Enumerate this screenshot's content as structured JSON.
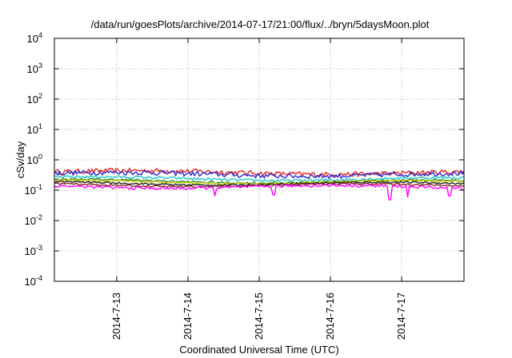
{
  "chart_data": {
    "type": "line",
    "title": "/data/run/goesPlots/archive/2014-07-17/21:00/flux/../bryn/5daysMoon.plot",
    "xlabel": "Coordinated Universal Time (UTC)",
    "ylabel": "cSv/day",
    "y_scale": "log",
    "ylim": [
      0.0001,
      10000
    ],
    "xlim": [
      "2014-07-12 03:00",
      "2014-07-17 21:00"
    ],
    "x_ticks": [
      "2014-7-13",
      "2014-7-14",
      "2014-7-15",
      "2014-7-16",
      "2014-7-17"
    ],
    "y_ticks": [
      {
        "base": "10",
        "exp": "4"
      },
      {
        "base": "10",
        "exp": "3"
      },
      {
        "base": "10",
        "exp": "2"
      },
      {
        "base": "10",
        "exp": "1"
      },
      {
        "base": "10",
        "exp": "0"
      },
      {
        "base": "10",
        "exp": "-1"
      },
      {
        "base": "10",
        "exp": "-2"
      },
      {
        "base": "10",
        "exp": "-3"
      },
      {
        "base": "10",
        "exp": "-4"
      }
    ],
    "grid": true,
    "legend": "none",
    "series": [
      {
        "color": "#e8231c",
        "baseline": 0.38,
        "spread": 0.18,
        "dips": []
      },
      {
        "color": "#2b2bd0",
        "baseline": 0.33,
        "spread": 0.18,
        "dips": []
      },
      {
        "color": "#1ec8c8",
        "baseline": 0.24,
        "spread": 0.1,
        "dips": []
      },
      {
        "color": "#2a8a2a",
        "baseline": 0.2,
        "spread": 0.07,
        "dips": []
      },
      {
        "color": "#c8c800",
        "baseline": 0.19,
        "spread": 0.06,
        "dips": []
      },
      {
        "color": "#222222",
        "baseline": 0.17,
        "spread": 0.06,
        "dips": []
      },
      {
        "color": "#8a2a2a",
        "baseline": 0.15,
        "spread": 0.06,
        "dips": []
      },
      {
        "color": "#ff00ff",
        "baseline": 0.13,
        "spread": 0.1,
        "dips": [
          {
            "x": "2014-07-14 09:00",
            "value": 0.065
          },
          {
            "x": "2014-07-15 05:00",
            "value": 0.07
          },
          {
            "x": "2014-07-16 20:00",
            "value": 0.048
          },
          {
            "x": "2014-07-17 02:00",
            "value": 0.06
          },
          {
            "x": "2014-07-17 16:00",
            "value": 0.065
          }
        ]
      }
    ]
  }
}
